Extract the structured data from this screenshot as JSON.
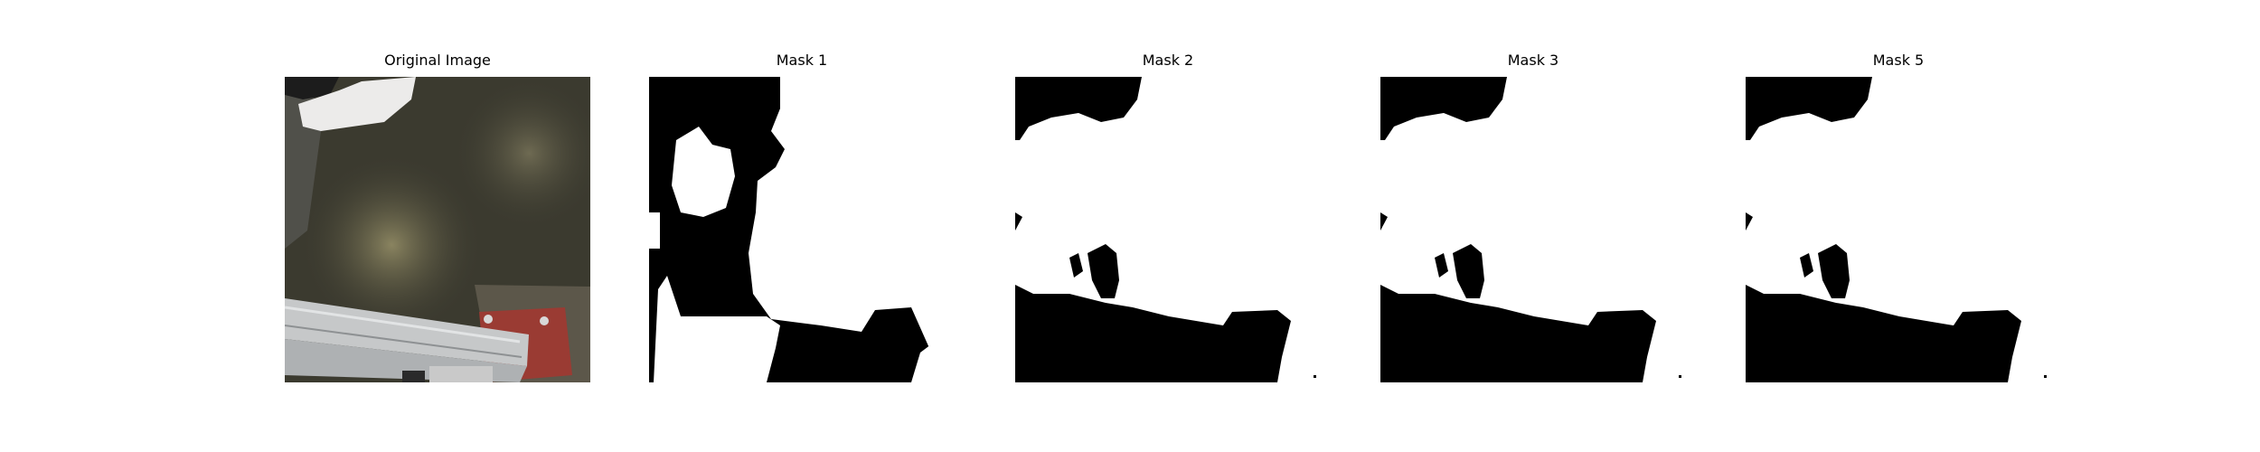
{
  "figure": {
    "panels": [
      {
        "title": "Original Image",
        "kind": "photo"
      },
      {
        "title": "Mask 1",
        "kind": "mask"
      },
      {
        "title": "Mask 2",
        "kind": "mask"
      },
      {
        "title": "Mask 3",
        "kind": "mask"
      },
      {
        "title": "Mask 5",
        "kind": "mask"
      }
    ]
  },
  "colors": {
    "mask_fg": "#ffffff",
    "mask_bg": "#000000",
    "photo_ground": "#3b3a2f",
    "photo_rail": "#b9bcbd",
    "photo_plate": "#9a3b33"
  }
}
